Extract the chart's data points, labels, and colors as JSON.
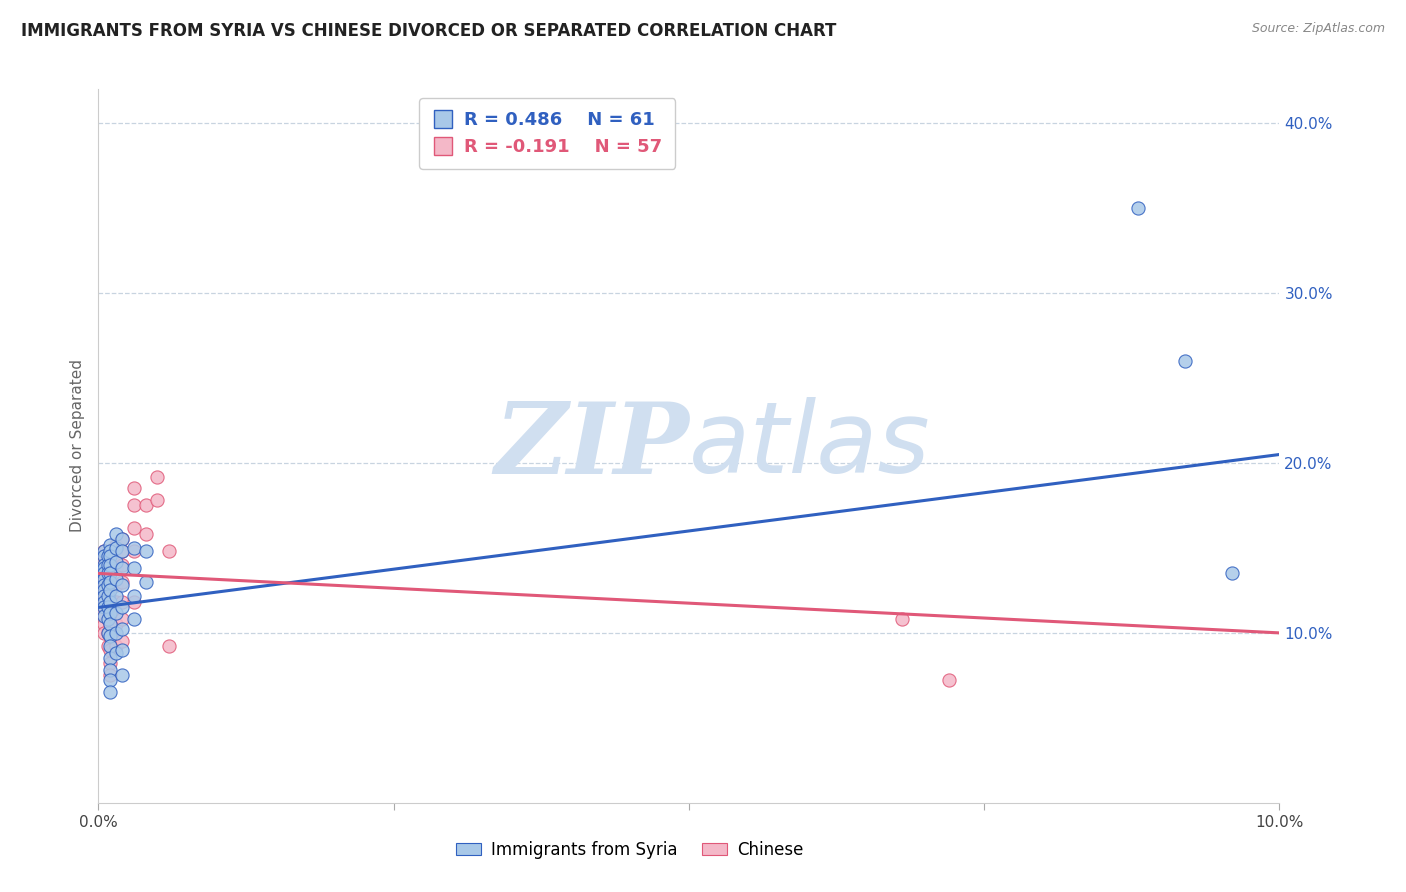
{
  "title": "IMMIGRANTS FROM SYRIA VS CHINESE DIVORCED OR SEPARATED CORRELATION CHART",
  "source": "Source: ZipAtlas.com",
  "ylabel": "Divorced or Separated",
  "xlabel_blue": "Immigrants from Syria",
  "xlabel_pink": "Chinese",
  "xlim": [
    0.0,
    0.1
  ],
  "ylim": [
    0.0,
    0.42
  ],
  "xticks": [
    0.0,
    0.025,
    0.05,
    0.075,
    0.1
  ],
  "yticks": [
    0.1,
    0.2,
    0.3,
    0.4
  ],
  "ytick_labels_right": [
    "10.0%",
    "20.0%",
    "30.0%",
    "40.0%"
  ],
  "xtick_labels": [
    "0.0%",
    "",
    "",
    "",
    "10.0%"
  ],
  "legend_blue_r": "R = 0.486",
  "legend_blue_n": "N = 61",
  "legend_pink_r": "R = -0.191",
  "legend_pink_n": "N = 57",
  "blue_color": "#a8c8e8",
  "pink_color": "#f4b8c8",
  "blue_line_color": "#3060c0",
  "pink_line_color": "#e05878",
  "watermark_color": "#d0dff0",
  "bg_color": "#ffffff",
  "grid_color": "#c8d4e0",
  "title_fontsize": 12,
  "source_fontsize": 9,
  "blue_scatter": [
    [
      0.0005,
      0.148
    ],
    [
      0.0005,
      0.145
    ],
    [
      0.0005,
      0.14
    ],
    [
      0.0005,
      0.138
    ],
    [
      0.0005,
      0.135
    ],
    [
      0.0005,
      0.132
    ],
    [
      0.0005,
      0.128
    ],
    [
      0.0005,
      0.125
    ],
    [
      0.0005,
      0.122
    ],
    [
      0.0005,
      0.118
    ],
    [
      0.0005,
      0.115
    ],
    [
      0.0005,
      0.11
    ],
    [
      0.0008,
      0.145
    ],
    [
      0.0008,
      0.14
    ],
    [
      0.0008,
      0.135
    ],
    [
      0.0008,
      0.128
    ],
    [
      0.0008,
      0.122
    ],
    [
      0.0008,
      0.115
    ],
    [
      0.0008,
      0.108
    ],
    [
      0.0008,
      0.1
    ],
    [
      0.001,
      0.152
    ],
    [
      0.001,
      0.148
    ],
    [
      0.001,
      0.145
    ],
    [
      0.001,
      0.14
    ],
    [
      0.001,
      0.135
    ],
    [
      0.001,
      0.13
    ],
    [
      0.001,
      0.125
    ],
    [
      0.001,
      0.118
    ],
    [
      0.001,
      0.112
    ],
    [
      0.001,
      0.105
    ],
    [
      0.001,
      0.098
    ],
    [
      0.001,
      0.092
    ],
    [
      0.001,
      0.085
    ],
    [
      0.001,
      0.078
    ],
    [
      0.001,
      0.072
    ],
    [
      0.001,
      0.065
    ],
    [
      0.0015,
      0.158
    ],
    [
      0.0015,
      0.15
    ],
    [
      0.0015,
      0.142
    ],
    [
      0.0015,
      0.132
    ],
    [
      0.0015,
      0.122
    ],
    [
      0.0015,
      0.112
    ],
    [
      0.0015,
      0.1
    ],
    [
      0.0015,
      0.088
    ],
    [
      0.002,
      0.155
    ],
    [
      0.002,
      0.148
    ],
    [
      0.002,
      0.138
    ],
    [
      0.002,
      0.128
    ],
    [
      0.002,
      0.115
    ],
    [
      0.002,
      0.102
    ],
    [
      0.002,
      0.09
    ],
    [
      0.002,
      0.075
    ],
    [
      0.003,
      0.15
    ],
    [
      0.003,
      0.138
    ],
    [
      0.003,
      0.122
    ],
    [
      0.003,
      0.108
    ],
    [
      0.004,
      0.148
    ],
    [
      0.004,
      0.13
    ],
    [
      0.088,
      0.35
    ],
    [
      0.092,
      0.26
    ],
    [
      0.096,
      0.135
    ]
  ],
  "pink_scatter": [
    [
      0.0005,
      0.148
    ],
    [
      0.0005,
      0.145
    ],
    [
      0.0005,
      0.14
    ],
    [
      0.0005,
      0.135
    ],
    [
      0.0005,
      0.13
    ],
    [
      0.0005,
      0.125
    ],
    [
      0.0005,
      0.12
    ],
    [
      0.0005,
      0.115
    ],
    [
      0.0005,
      0.11
    ],
    [
      0.0005,
      0.105
    ],
    [
      0.0005,
      0.1
    ],
    [
      0.0008,
      0.145
    ],
    [
      0.0008,
      0.138
    ],
    [
      0.0008,
      0.13
    ],
    [
      0.0008,
      0.122
    ],
    [
      0.0008,
      0.115
    ],
    [
      0.0008,
      0.108
    ],
    [
      0.0008,
      0.1
    ],
    [
      0.0008,
      0.092
    ],
    [
      0.001,
      0.148
    ],
    [
      0.001,
      0.142
    ],
    [
      0.001,
      0.135
    ],
    [
      0.001,
      0.128
    ],
    [
      0.001,
      0.12
    ],
    [
      0.001,
      0.112
    ],
    [
      0.001,
      0.105
    ],
    [
      0.001,
      0.098
    ],
    [
      0.001,
      0.09
    ],
    [
      0.001,
      0.082
    ],
    [
      0.001,
      0.075
    ],
    [
      0.0015,
      0.152
    ],
    [
      0.0015,
      0.145
    ],
    [
      0.0015,
      0.138
    ],
    [
      0.0015,
      0.128
    ],
    [
      0.0015,
      0.118
    ],
    [
      0.0015,
      0.105
    ],
    [
      0.0015,
      0.092
    ],
    [
      0.002,
      0.155
    ],
    [
      0.002,
      0.148
    ],
    [
      0.002,
      0.14
    ],
    [
      0.002,
      0.13
    ],
    [
      0.002,
      0.118
    ],
    [
      0.002,
      0.108
    ],
    [
      0.002,
      0.095
    ],
    [
      0.003,
      0.185
    ],
    [
      0.003,
      0.175
    ],
    [
      0.003,
      0.162
    ],
    [
      0.003,
      0.148
    ],
    [
      0.003,
      0.118
    ],
    [
      0.004,
      0.175
    ],
    [
      0.004,
      0.158
    ],
    [
      0.005,
      0.192
    ],
    [
      0.005,
      0.178
    ],
    [
      0.006,
      0.148
    ],
    [
      0.006,
      0.092
    ],
    [
      0.068,
      0.108
    ],
    [
      0.072,
      0.072
    ]
  ],
  "blue_line_x": [
    0.0,
    0.1
  ],
  "blue_line_y": [
    0.115,
    0.205
  ],
  "pink_line_x": [
    0.0,
    0.1
  ],
  "pink_line_y": [
    0.135,
    0.1
  ]
}
